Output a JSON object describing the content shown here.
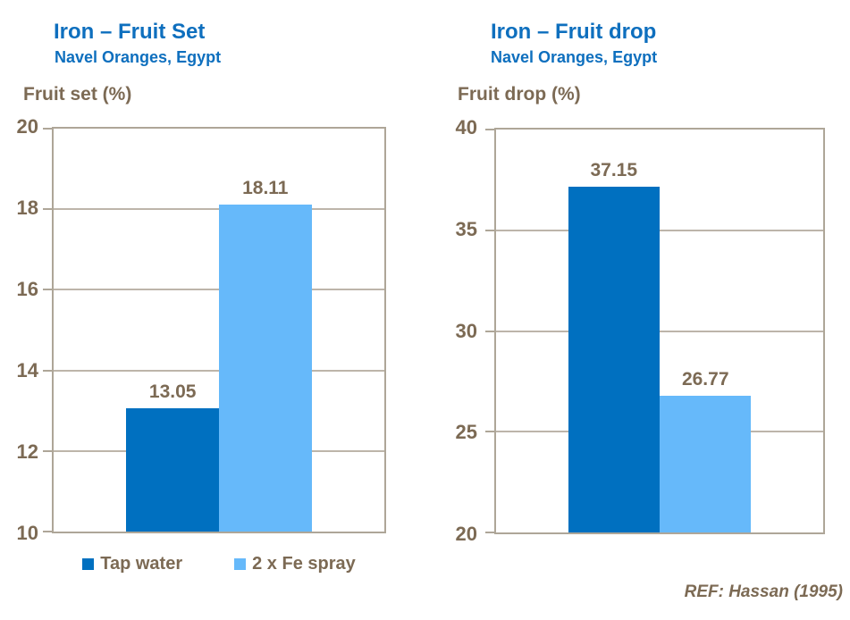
{
  "page": {
    "ref_text": "REF: Hassan (1995)"
  },
  "legend": {
    "items": [
      {
        "label": "Tap water",
        "color": "#0070C0"
      },
      {
        "label": "2 x Fe spray",
        "color": "#66B9FA"
      }
    ]
  },
  "chart_data": [
    {
      "type": "bar",
      "title": "Iron – Fruit Set",
      "subtitle": "Navel Oranges, Egypt",
      "axis_title": "Fruit set (%)",
      "categories": [
        "Tap water",
        "2 x Fe spray"
      ],
      "values": [
        13.05,
        18.11
      ],
      "value_labels": [
        "13.05",
        "18.11"
      ],
      "colors": [
        "#0070C0",
        "#66B9FA"
      ],
      "ylim": [
        10,
        20
      ],
      "ytick_step": 2,
      "grid": true,
      "legend_position": "bottom"
    },
    {
      "type": "bar",
      "title": "Iron – Fruit drop",
      "subtitle": "Navel Oranges, Egypt",
      "axis_title": "Fruit drop (%)",
      "categories": [
        "Tap water",
        "2 x Fe spray"
      ],
      "values": [
        37.15,
        26.77
      ],
      "value_labels": [
        "37.15",
        "26.77"
      ],
      "colors": [
        "#0070C0",
        "#66B9FA"
      ],
      "ylim": [
        20,
        40
      ],
      "ytick_step": 5,
      "grid": true,
      "legend_position": "none"
    }
  ],
  "colors": {
    "title_blue": "#0E6FBE",
    "bar_dark": "#0070C0",
    "bar_light": "#66B9FA",
    "text_brown": "#7C6A54",
    "axis_border": "#AEA698",
    "gridline": "#BDB5AA"
  }
}
